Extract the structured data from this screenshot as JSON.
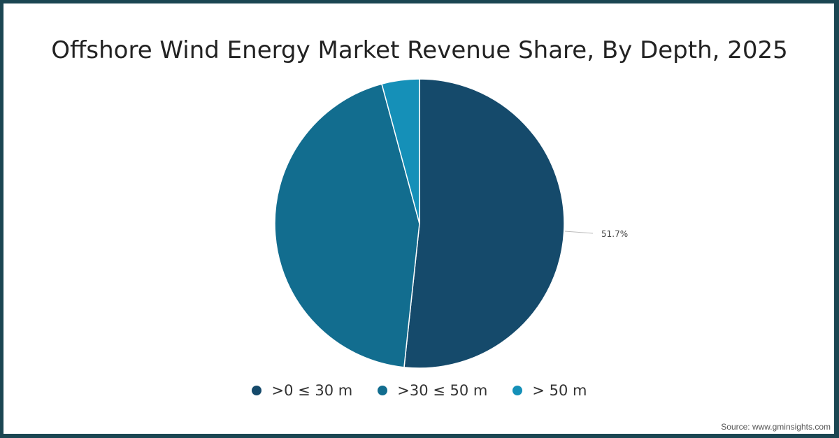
{
  "title": "Offshore Wind Energy Market Revenue Share, By Depth, 2025",
  "source": "Source: www.gminsights.com",
  "legend": [
    {
      "label": ">0 ≤ 30 m",
      "color": "#154a6b"
    },
    {
      "label": ">30 ≤ 50 m",
      "color": "#126d8f"
    },
    {
      "label": "> 50 m",
      "color": "#1590b8"
    }
  ],
  "data_label": "51.7%",
  "chart_data": {
    "type": "pie",
    "title": "Offshore Wind Energy Market Revenue Share, By Depth, 2025",
    "categories": [
      ">0 ≤ 30 m",
      ">30 ≤ 50 m",
      "> 50 m"
    ],
    "values": [
      51.7,
      44.1,
      4.2
    ],
    "colors": [
      "#154a6b",
      "#126d8f",
      "#1590b8"
    ],
    "annotations": [
      {
        "category": ">0 ≤ 30 m",
        "label": "51.7%"
      }
    ],
    "legend_position": "bottom",
    "unit": "%"
  }
}
